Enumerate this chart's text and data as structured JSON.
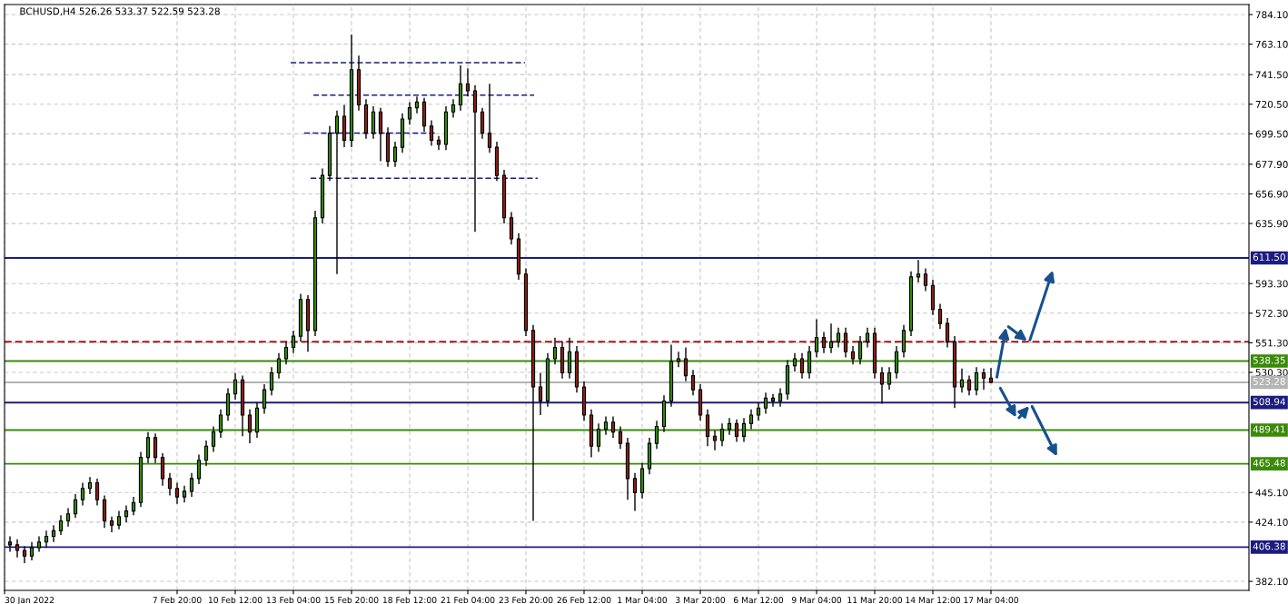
{
  "chart_data": {
    "type": "candlestick",
    "title": "BCHUSD,H4 526.26 533.37 522.59 523.28",
    "x": [
      "2022-01-31T04:00",
      "2022-01-31T12:00",
      "2022-01-31T20:00",
      "2022-02-01T04:00",
      "2022-02-01T12:00",
      "2022-02-01T20:00",
      "2022-02-02T04:00",
      "2022-02-02T12:00",
      "2022-02-02T20:00",
      "2022-02-03T04:00",
      "2022-02-03T12:00",
      "2022-02-03T20:00",
      "2022-02-04T04:00",
      "2022-02-04T12:00",
      "2022-02-04T20:00",
      "2022-02-05T04:00",
      "2022-02-05T12:00",
      "2022-02-05T20:00",
      "2022-02-06T04:00",
      "2022-02-06T12:00",
      "2022-02-06T20:00",
      "2022-02-07T04:00",
      "2022-02-07T12:00",
      "2022-02-07T20:00",
      "2022-02-08T04:00",
      "2022-02-08T12:00",
      "2022-02-08T20:00",
      "2022-02-09T04:00",
      "2022-02-09T12:00",
      "2022-02-09T20:00",
      "2022-02-10T04:00",
      "2022-02-10T12:00",
      "2022-02-10T20:00",
      "2022-02-11T04:00",
      "2022-02-11T12:00",
      "2022-02-11T20:00",
      "2022-02-12T04:00",
      "2022-02-12T12:00",
      "2022-02-12T20:00",
      "2022-02-13T04:00",
      "2022-02-13T12:00",
      "2022-02-13T20:00",
      "2022-02-14T04:00",
      "2022-02-14T12:00",
      "2022-02-14T20:00",
      "2022-02-15T04:00",
      "2022-02-15T12:00",
      "2022-02-15T20:00",
      "2022-02-16T04:00",
      "2022-02-16T12:00",
      "2022-02-16T20:00",
      "2022-02-17T04:00",
      "2022-02-17T12:00",
      "2022-02-17T20:00",
      "2022-02-18T04:00",
      "2022-02-18T12:00",
      "2022-02-18T20:00",
      "2022-02-19T04:00",
      "2022-02-19T12:00",
      "2022-02-19T20:00",
      "2022-02-20T04:00",
      "2022-02-20T12:00",
      "2022-02-20T20:00",
      "2022-02-21T04:00",
      "2022-02-21T12:00",
      "2022-02-21T20:00",
      "2022-02-22T04:00",
      "2022-02-22T12:00",
      "2022-02-22T20:00",
      "2022-02-23T04:00",
      "2022-02-23T12:00",
      "2022-02-23T20:00",
      "2022-02-24T04:00",
      "2022-02-24T12:00",
      "2022-02-24T20:00",
      "2022-02-25T04:00",
      "2022-02-25T12:00",
      "2022-02-25T20:00",
      "2022-02-26T04:00",
      "2022-02-26T12:00",
      "2022-02-26T20:00",
      "2022-02-27T04:00",
      "2022-02-27T12:00",
      "2022-02-27T20:00",
      "2022-02-28T04:00",
      "2022-02-28T12:00",
      "2022-02-28T20:00",
      "2022-03-01T04:00",
      "2022-03-01T12:00",
      "2022-03-01T20:00",
      "2022-03-02T04:00",
      "2022-03-02T12:00",
      "2022-03-02T20:00",
      "2022-03-03T04:00",
      "2022-03-03T12:00",
      "2022-03-03T20:00",
      "2022-03-04T04:00",
      "2022-03-04T12:00",
      "2022-03-04T20:00",
      "2022-03-05T04:00",
      "2022-03-05T12:00",
      "2022-03-05T20:00",
      "2022-03-06T04:00",
      "2022-03-06T12:00",
      "2022-03-06T20:00",
      "2022-03-07T04:00",
      "2022-03-07T12:00",
      "2022-03-07T20:00",
      "2022-03-08T04:00",
      "2022-03-08T12:00",
      "2022-03-08T20:00",
      "2022-03-09T04:00",
      "2022-03-09T12:00",
      "2022-03-09T20:00",
      "2022-03-10T04:00",
      "2022-03-10T12:00",
      "2022-03-10T20:00",
      "2022-03-11T04:00",
      "2022-03-11T12:00",
      "2022-03-11T20:00",
      "2022-03-12T04:00",
      "2022-03-12T12:00",
      "2022-03-12T20:00",
      "2022-03-13T04:00",
      "2022-03-13T12:00",
      "2022-03-13T20:00",
      "2022-03-14T04:00",
      "2022-03-14T12:00",
      "2022-03-14T20:00",
      "2022-03-15T04:00",
      "2022-03-15T12:00",
      "2022-03-15T20:00",
      "2022-03-16T04:00",
      "2022-03-16T12:00",
      "2022-03-16T20:00",
      "2022-03-17T04:00"
    ],
    "ohlc": [
      [
        410,
        414,
        403,
        408
      ],
      [
        408,
        412,
        399,
        404
      ],
      [
        404,
        407,
        395,
        400
      ],
      [
        400,
        410,
        397,
        406
      ],
      [
        406,
        414,
        403,
        410
      ],
      [
        410,
        418,
        406,
        414
      ],
      [
        414,
        422,
        410,
        418
      ],
      [
        418,
        429,
        415,
        425
      ],
      [
        425,
        434,
        421,
        430
      ],
      [
        430,
        444,
        427,
        440
      ],
      [
        440,
        452,
        436,
        448
      ],
      [
        448,
        456,
        444,
        452
      ],
      [
        452,
        455,
        436,
        440
      ],
      [
        440,
        443,
        420,
        425
      ],
      [
        425,
        428,
        417,
        422
      ],
      [
        422,
        432,
        419,
        428
      ],
      [
        428,
        436,
        424,
        432
      ],
      [
        432,
        442,
        429,
        438
      ],
      [
        438,
        474,
        435,
        470
      ],
      [
        470,
        488,
        466,
        484
      ],
      [
        484,
        487,
        466,
        470
      ],
      [
        470,
        473,
        450,
        455
      ],
      [
        455,
        459,
        443,
        448
      ],
      [
        448,
        452,
        437,
        442
      ],
      [
        442,
        450,
        438,
        446
      ],
      [
        446,
        459,
        442,
        455
      ],
      [
        455,
        472,
        451,
        468
      ],
      [
        468,
        482,
        464,
        478
      ],
      [
        478,
        492,
        474,
        488
      ],
      [
        488,
        504,
        484,
        500
      ],
      [
        500,
        519,
        496,
        515
      ],
      [
        515,
        530,
        511,
        525
      ],
      [
        525,
        528,
        485,
        500
      ],
      [
        500,
        504,
        480,
        488
      ],
      [
        488,
        509,
        484,
        505
      ],
      [
        505,
        522,
        501,
        518
      ],
      [
        518,
        534,
        514,
        530
      ],
      [
        530,
        544,
        526,
        540
      ],
      [
        540,
        552,
        536,
        548
      ],
      [
        548,
        560,
        544,
        556
      ],
      [
        556,
        586,
        552,
        582
      ],
      [
        582,
        585,
        545,
        560
      ],
      [
        560,
        645,
        556,
        640
      ],
      [
        640,
        675,
        636,
        670
      ],
      [
        670,
        705,
        666,
        700
      ],
      [
        700,
        716,
        600,
        712
      ],
      [
        712,
        720,
        690,
        695
      ],
      [
        695,
        770,
        690,
        745
      ],
      [
        745,
        755,
        716,
        720
      ],
      [
        720,
        724,
        696,
        700
      ],
      [
        700,
        719,
        696,
        715
      ],
      [
        715,
        718,
        680,
        700
      ],
      [
        700,
        704,
        676,
        680
      ],
      [
        680,
        694,
        676,
        690
      ],
      [
        690,
        714,
        686,
        710
      ],
      [
        710,
        722,
        706,
        718
      ],
      [
        718,
        726,
        714,
        722
      ],
      [
        722,
        725,
        701,
        705
      ],
      [
        705,
        709,
        691,
        695
      ],
      [
        695,
        698,
        688,
        692
      ],
      [
        692,
        719,
        688,
        715
      ],
      [
        715,
        724,
        711,
        720
      ],
      [
        720,
        748,
        716,
        735
      ],
      [
        735,
        746,
        726,
        730
      ],
      [
        730,
        734,
        630,
        715
      ],
      [
        715,
        718,
        696,
        700
      ],
      [
        700,
        735,
        686,
        690
      ],
      [
        690,
        694,
        666,
        670
      ],
      [
        670,
        674,
        636,
        640
      ],
      [
        640,
        644,
        621,
        625
      ],
      [
        625,
        629,
        596,
        600
      ],
      [
        600,
        604,
        556,
        560
      ],
      [
        560,
        564,
        425,
        520
      ],
      [
        520,
        530,
        500,
        510
      ],
      [
        510,
        544,
        506,
        540
      ],
      [
        540,
        555,
        536,
        548
      ],
      [
        548,
        552,
        526,
        530
      ],
      [
        530,
        555,
        526,
        545
      ],
      [
        545,
        549,
        516,
        520
      ],
      [
        520,
        524,
        496,
        500
      ],
      [
        500,
        504,
        470,
        478
      ],
      [
        478,
        494,
        474,
        490
      ],
      [
        490,
        499,
        486,
        495
      ],
      [
        495,
        499,
        484,
        488
      ],
      [
        488,
        492,
        476,
        480
      ],
      [
        480,
        484,
        440,
        455
      ],
      [
        455,
        459,
        432,
        445
      ],
      [
        445,
        466,
        441,
        462
      ],
      [
        462,
        484,
        458,
        480
      ],
      [
        480,
        496,
        476,
        492
      ],
      [
        492,
        514,
        488,
        510
      ],
      [
        510,
        550,
        506,
        538
      ],
      [
        538,
        545,
        534,
        540
      ],
      [
        540,
        548,
        524,
        528
      ],
      [
        528,
        532,
        514,
        518
      ],
      [
        518,
        522,
        496,
        500
      ],
      [
        500,
        504,
        478,
        485
      ],
      [
        485,
        489,
        475,
        482
      ],
      [
        482,
        494,
        478,
        490
      ],
      [
        490,
        498,
        486,
        494
      ],
      [
        494,
        497,
        481,
        485
      ],
      [
        485,
        498,
        481,
        494
      ],
      [
        494,
        504,
        490,
        500
      ],
      [
        500,
        509,
        496,
        505
      ],
      [
        505,
        516,
        501,
        512
      ],
      [
        512,
        515,
        506,
        510
      ],
      [
        510,
        519,
        506,
        515
      ],
      [
        515,
        539,
        511,
        535
      ],
      [
        535,
        544,
        531,
        540
      ],
      [
        540,
        544,
        526,
        530
      ],
      [
        530,
        549,
        526,
        545
      ],
      [
        545,
        568,
        541,
        555
      ],
      [
        555,
        559,
        544,
        548
      ],
      [
        548,
        565,
        544,
        552
      ],
      [
        552,
        562,
        548,
        558
      ],
      [
        558,
        562,
        541,
        545
      ],
      [
        545,
        549,
        536,
        540
      ],
      [
        540,
        556,
        536,
        552
      ],
      [
        552,
        562,
        548,
        558
      ],
      [
        558,
        562,
        526,
        530
      ],
      [
        530,
        534,
        508,
        522
      ],
      [
        522,
        534,
        518,
        530
      ],
      [
        530,
        549,
        526,
        545
      ],
      [
        545,
        564,
        541,
        560
      ],
      [
        560,
        602,
        556,
        598
      ],
      [
        598,
        610,
        594,
        600
      ],
      [
        600,
        604,
        588,
        592
      ],
      [
        592,
        596,
        571,
        575
      ],
      [
        575,
        579,
        561,
        565
      ],
      [
        565,
        569,
        548,
        552
      ],
      [
        552,
        556,
        505,
        520
      ],
      [
        520,
        533,
        516,
        525
      ],
      [
        525,
        528,
        514,
        518
      ],
      [
        518,
        534,
        514,
        530
      ],
      [
        530,
        533,
        518,
        526.26
      ],
      [
        526.26,
        533.37,
        522.59,
        523.28
      ]
    ],
    "series": [
      {
        "type": "line",
        "color": "#1c1c80",
        "line_style": "dashed",
        "x": [
          "2022-02-13T01:00",
          "2022-02-23T19:00"
        ],
        "values": [
          750,
          750
        ]
      },
      {
        "type": "line",
        "color": "#1c1c80",
        "line_style": "dashed",
        "x": [
          "2022-02-14T02:00",
          "2022-02-24T05:00"
        ],
        "values": [
          727,
          727
        ]
      },
      {
        "type": "line",
        "color": "#1c1c80",
        "line_style": "dashed",
        "x": [
          "2022-02-13T16:00",
          "2022-02-19T17:00"
        ],
        "values": [
          700,
          700
        ]
      },
      {
        "type": "line",
        "color": "#1c1c80",
        "line_style": "dashed",
        "x": [
          "2022-02-13T23:00",
          "2022-02-24T09:00"
        ],
        "values": [
          668,
          668
        ]
      }
    ],
    "ref_lines": [
      {
        "axis": "y",
        "value": 611.5,
        "label": "611.50",
        "color": "#1c1c80"
      },
      {
        "axis": "y",
        "value": 552,
        "color": "#a01c1c",
        "line_style": "dashed"
      },
      {
        "axis": "y",
        "value": 538.35,
        "label": "538.35",
        "color": "#3a8a08"
      },
      {
        "axis": "y",
        "value": 523.28,
        "label": "523.28",
        "color": "#b4b4b4"
      },
      {
        "axis": "y",
        "value": 508.94,
        "label": "508.94",
        "color": "#1c1c80"
      },
      {
        "axis": "y",
        "value": 489.41,
        "label": "489.41",
        "color": "#3a8a08"
      },
      {
        "axis": "y",
        "value": 465.48,
        "label": "465.48",
        "color": "#3a8a08"
      },
      {
        "axis": "y",
        "value": 406.38,
        "label": "406.38",
        "color": "#1c1c80"
      }
    ],
    "xlim": [
      "2022-01-30T22:00",
      "2022-03-29T00:00"
    ],
    "xticks": [
      {
        "value": "2022-01-30T22:00",
        "label": "30 Jan 2022"
      },
      {
        "value": "2022-02-07T20:00",
        "label": "7 Feb 20:00"
      },
      {
        "value": "2022-02-10T12:00",
        "label": "10 Feb 12:00"
      },
      {
        "value": "2022-02-13T04:00",
        "label": "13 Feb 04:00"
      },
      {
        "value": "2022-02-15T20:00",
        "label": "15 Feb 20:00"
      },
      {
        "value": "2022-02-18T12:00",
        "label": "18 Feb 12:00"
      },
      {
        "value": "2022-02-21T04:00",
        "label": "21 Feb 04:00"
      },
      {
        "value": "2022-02-23T20:00",
        "label": "23 Feb 20:00"
      },
      {
        "value": "2022-02-26T12:00",
        "label": "26 Feb 12:00"
      },
      {
        "value": "2022-03-01T04:00",
        "label": "1 Mar 04:00"
      },
      {
        "value": "2022-03-03T20:00",
        "label": "3 Mar 20:00"
      },
      {
        "value": "2022-03-06T12:00",
        "label": "6 Mar 12:00"
      },
      {
        "value": "2022-03-09T04:00",
        "label": "9 Mar 04:00"
      },
      {
        "value": "2022-03-11T20:00",
        "label": "11 Mar 20:00"
      },
      {
        "value": "2022-03-14T12:00",
        "label": "14 Mar 12:00"
      },
      {
        "value": "2022-03-17T04:00",
        "label": "17 Mar 04:00"
      }
    ],
    "ylim": [
      375.7,
      791.2
    ],
    "yticks": [
      {
        "value": 382.1,
        "label": "382.10"
      },
      {
        "value": 424.1,
        "label": "424.10"
      },
      {
        "value": 445.1,
        "label": "445.10"
      },
      {
        "value": 530.3,
        "label": "530.30"
      },
      {
        "value": 551.3,
        "label": "551.30"
      },
      {
        "value": 572.3,
        "label": "572.30"
      },
      {
        "value": 593.3,
        "label": "593.30"
      },
      {
        "value": 635.9,
        "label": "635.90"
      },
      {
        "value": 656.9,
        "label": "656.90"
      },
      {
        "value": 677.9,
        "label": "677.90"
      },
      {
        "value": 699.5,
        "label": "699.50"
      },
      {
        "value": 720.5,
        "label": "720.50"
      },
      {
        "value": 741.5,
        "label": "741.50"
      },
      {
        "value": 763.1,
        "label": "763.10"
      },
      {
        "value": 784.1,
        "label": "784.10"
      }
    ],
    "grid": true
  }
}
